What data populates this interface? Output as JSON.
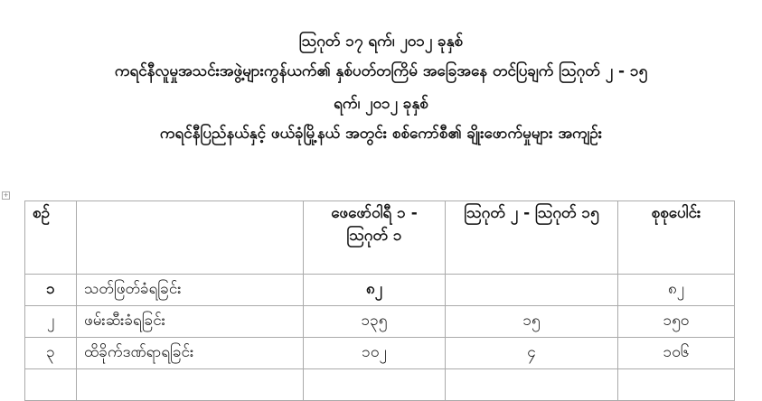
{
  "title": {
    "line1": "ဩဂုတ် ၁၇ ရက်၊ ၂၀၁၂ ခုနှစ်",
    "line2": "ကရင်နီလူမှုအသင်းအဖွဲ့များကွန်ယက်၏ နှစ်ပတ်တကြိမ် အခြေအနေ တင်ပြချက် ဩဂုတ် ၂ - ၁၅",
    "line3": "ရက်၊ ၂၀၁၂ ခုနှစ်",
    "line4": "ကရင်နီပြည်နယ်နှင့် ဖယ်ခုံမြို့နယ် အတွင်း စစ်ကော်စီ၏ ချိုးဖောက်မှုများ အကျဉ်း"
  },
  "table": {
    "headers": [
      "စဉ်",
      "",
      "ဖေဖော်ဝါရီ ၁ - ဩဂုတ် ၁",
      "ဩဂုတ် ၂ - ဩဂုတ် ၁၅",
      "စုစုပေါင်း"
    ],
    "rows": [
      [
        "၁",
        "သတ်ဖြတ်ခံရခြင်း",
        "၈၂",
        "",
        "၈၂"
      ],
      [
        "၂",
        "ဖမ်းဆီးခံရခြင်း",
        "၁၃၅",
        "၁၅",
        "၁၅၀"
      ],
      [
        "၃",
        "ထိခိုက်ဒဏ်ရာရခြင်း",
        "၁၀၂",
        "၄",
        "၁၀၆"
      ]
    ]
  }
}
